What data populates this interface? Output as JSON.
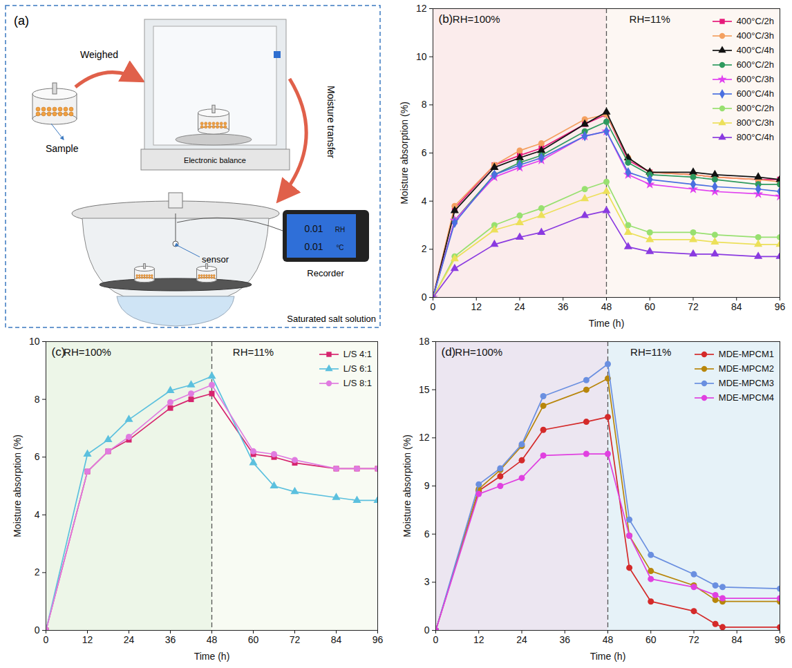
{
  "diagram": {
    "label": "(a)",
    "sample": "Sample",
    "weighed": "Weighed",
    "balance": "Electronic balance",
    "transfer": "Moisture transfer",
    "sensor": "sensor",
    "recorder": "Recorder",
    "salt": "Saturated salt solution",
    "display": [
      "0.01",
      "RH",
      "0.01",
      "°C"
    ]
  },
  "chart_data": [
    {
      "type": "line",
      "panel_label": "(b)",
      "x_label": "Time (h)",
      "y_label": "Moisture absorption (%)",
      "xlim": [
        0,
        96
      ],
      "xticks": [
        0,
        12,
        24,
        36,
        48,
        60,
        72,
        84,
        96
      ],
      "ylim": [
        0,
        12
      ],
      "yticks": [
        0,
        2,
        4,
        6,
        8,
        10,
        12
      ],
      "grid": false,
      "legend": "top-right",
      "regions": [
        {
          "label": "RH=100%",
          "from": 0,
          "to": 48
        },
        {
          "label": "RH=11%",
          "from": 48,
          "to": 96
        }
      ],
      "x": [
        0,
        6,
        17,
        24,
        30,
        42,
        48,
        54,
        60,
        72,
        78,
        90,
        96
      ],
      "series": [
        {
          "name": "400°C/2h",
          "color": "#e6197a",
          "marker": "square",
          "values": [
            0,
            3.7,
            5.5,
            5.9,
            6.2,
            7.2,
            7.6,
            5.7,
            5.2,
            5.1,
            5.0,
            4.9,
            4.9
          ]
        },
        {
          "name": "400°C/3h",
          "color": "#f4a060",
          "marker": "circle",
          "values": [
            0,
            3.8,
            5.5,
            6.1,
            6.4,
            7.4,
            7.6,
            5.8,
            5.2,
            5.1,
            5.0,
            4.9,
            4.8
          ]
        },
        {
          "name": "400°C/4h",
          "color": "#111111",
          "marker": "triangle",
          "values": [
            0,
            3.6,
            5.4,
            5.8,
            6.1,
            7.2,
            7.7,
            5.8,
            5.2,
            5.2,
            5.1,
            5.0,
            4.9
          ]
        },
        {
          "name": "600°C/2h",
          "color": "#2e9a5e",
          "marker": "circle",
          "values": [
            0,
            3.2,
            5.1,
            5.6,
            5.9,
            6.9,
            7.3,
            5.6,
            5.1,
            5.0,
            4.9,
            4.7,
            4.7
          ]
        },
        {
          "name": "600°C/3h",
          "color": "#e040f0",
          "marker": "star",
          "values": [
            0,
            3.2,
            5.0,
            5.4,
            5.7,
            6.7,
            6.9,
            5.1,
            4.7,
            4.5,
            4.4,
            4.3,
            4.2
          ]
        },
        {
          "name": "600°C/4h",
          "color": "#4a6fe0",
          "marker": "diamond",
          "values": [
            0,
            3.1,
            5.1,
            5.5,
            5.8,
            6.7,
            6.9,
            5.2,
            4.9,
            4.7,
            4.6,
            4.5,
            4.4
          ]
        },
        {
          "name": "800°C/2h",
          "color": "#98e070",
          "marker": "circle",
          "values": [
            0,
            1.7,
            3.0,
            3.4,
            3.7,
            4.5,
            4.8,
            3.0,
            2.7,
            2.7,
            2.6,
            2.5,
            2.5
          ]
        },
        {
          "name": "800°C/3h",
          "color": "#ece05a",
          "marker": "triangle",
          "values": [
            0,
            1.6,
            2.8,
            3.1,
            3.4,
            4.1,
            4.4,
            2.7,
            2.4,
            2.4,
            2.3,
            2.2,
            2.2
          ]
        },
        {
          "name": "800°C/4h",
          "color": "#8a3ae0",
          "marker": "triangle",
          "values": [
            0,
            1.2,
            2.2,
            2.5,
            2.7,
            3.4,
            3.6,
            2.1,
            1.9,
            1.8,
            1.8,
            1.7,
            1.7
          ]
        }
      ]
    },
    {
      "type": "line",
      "panel_label": "(c)",
      "x_label": "Time (h)",
      "y_label": "Moisture absorption (%)",
      "xlim": [
        0,
        96
      ],
      "xticks": [
        0,
        12,
        24,
        36,
        48,
        60,
        72,
        84,
        96
      ],
      "ylim": [
        0,
        10
      ],
      "yticks": [
        0,
        2,
        4,
        6,
        8,
        10
      ],
      "grid": false,
      "legend": "top-right",
      "regions": [
        {
          "label": "RH=100%",
          "from": 0,
          "to": 48
        },
        {
          "label": "RH=11%",
          "from": 48,
          "to": 96
        }
      ],
      "x": [
        0,
        12,
        18,
        24,
        36,
        42,
        48,
        60,
        66,
        72,
        84,
        90,
        96
      ],
      "series": [
        {
          "name": "L/S 4:1",
          "color": "#d6246e",
          "marker": "square",
          "values": [
            0,
            5.5,
            6.2,
            6.6,
            7.7,
            8.0,
            8.2,
            6.1,
            6.0,
            5.8,
            5.6,
            5.6,
            5.6
          ]
        },
        {
          "name": "L/S 6:1",
          "color": "#5bc0de",
          "marker": "triangle",
          "values": [
            0,
            6.1,
            6.6,
            7.3,
            8.3,
            8.5,
            8.8,
            5.8,
            5.0,
            4.8,
            4.6,
            4.5,
            4.5
          ]
        },
        {
          "name": "L/S 8:1",
          "color": "#e07be0",
          "marker": "circle",
          "values": [
            0,
            5.5,
            6.2,
            6.7,
            7.9,
            8.2,
            8.5,
            6.2,
            6.1,
            5.9,
            5.6,
            5.6,
            5.6
          ]
        }
      ]
    },
    {
      "type": "line",
      "panel_label": "(d)",
      "x_label": "Time (h)",
      "y_label": "Moisture absorption (%)",
      "xlim": [
        0,
        96
      ],
      "xticks": [
        0,
        12,
        24,
        36,
        48,
        60,
        72,
        84,
        96
      ],
      "ylim": [
        0,
        18
      ],
      "yticks": [
        0,
        3,
        6,
        9,
        12,
        15,
        18
      ],
      "grid": false,
      "legend": "top-right",
      "regions": [
        {
          "label": "RH=100%",
          "from": 0,
          "to": 48
        },
        {
          "label": "RH=11%",
          "from": 48,
          "to": 96
        }
      ],
      "x": [
        0,
        12,
        18,
        24,
        30,
        42,
        48,
        54,
        60,
        72,
        78,
        80,
        96
      ],
      "series": [
        {
          "name": "MDE-MPCM1",
          "color": "#d42a2a",
          "marker": "circle",
          "values": [
            0,
            8.7,
            9.6,
            10.6,
            12.5,
            13.0,
            13.3,
            3.9,
            1.8,
            1.2,
            0.4,
            0.2,
            0.2
          ]
        },
        {
          "name": "MDE-MPCM2",
          "color": "#b8860b",
          "marker": "circle",
          "values": [
            0,
            8.8,
            10.0,
            11.5,
            14.0,
            15.0,
            15.7,
            5.9,
            3.7,
            2.8,
            1.9,
            1.8,
            1.8
          ]
        },
        {
          "name": "MDE-MPCM3",
          "color": "#6a8fe0",
          "marker": "circle",
          "values": [
            0,
            9.1,
            10.1,
            11.6,
            14.6,
            15.6,
            16.6,
            6.9,
            4.7,
            3.5,
            2.8,
            2.7,
            2.6
          ]
        },
        {
          "name": "MDE-MPCM4",
          "color": "#e040e0",
          "marker": "circle",
          "values": [
            0,
            8.5,
            9.0,
            9.5,
            10.9,
            11.0,
            11.0,
            5.9,
            3.2,
            2.7,
            2.2,
            2.0,
            2.0
          ]
        }
      ]
    }
  ]
}
